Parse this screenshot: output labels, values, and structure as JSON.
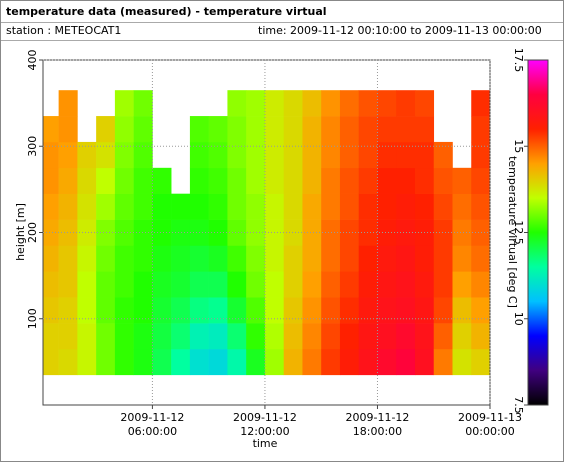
{
  "header": {
    "title": "temperature data (measured) - temperature virtual",
    "station": "station : METEOCAT1",
    "time_range": "time: 2009-11-12 00:10:00 to 2009-11-13 00:00:00"
  },
  "chart_data": {
    "type": "heatmap",
    "x_label": "time",
    "y_label": "height [m]",
    "colorbar_label": "temperature virtual [deg C]",
    "xlim": [
      "2009-11-12 00:10:00",
      "2009-11-13 00:00:00"
    ],
    "xticks": [
      {
        "value": "2009-11-12 06:00:00",
        "label": [
          "2009-11-12",
          "06:00:00"
        ]
      },
      {
        "value": "2009-11-12 12:00:00",
        "label": [
          "2009-11-12",
          "12:00:00"
        ]
      },
      {
        "value": "2009-11-12 18:00:00",
        "label": [
          "2009-11-12",
          "18:00:00"
        ]
      },
      {
        "value": "2009-11-13 00:00:00",
        "label": [
          "2009-11-13",
          "00:00:00"
        ]
      }
    ],
    "ylim": [
      0,
      400
    ],
    "yticks": [
      100,
      200,
      300,
      400
    ],
    "grid": true,
    "zlim": [
      7.5,
      17.5
    ],
    "zticks": [
      7.5,
      10,
      12.5,
      15,
      17.5
    ],
    "colormap": [
      "#000000",
      "#400080",
      "#0000ff",
      "#00c0ff",
      "#00ffa0",
      "#20ff00",
      "#c0ff00",
      "#ffa000",
      "#ff2000",
      "#ff0040",
      "#ff00ff"
    ],
    "x_bins": [
      "2009-11-12 00:10:00",
      "2009-11-12 01:00:00",
      "2009-11-12 02:00:00",
      "2009-11-12 03:00:00",
      "2009-11-12 04:00:00",
      "2009-11-12 05:00:00",
      "2009-11-12 06:00:00",
      "2009-11-12 07:00:00",
      "2009-11-12 08:00:00",
      "2009-11-12 09:00:00",
      "2009-11-12 10:00:00",
      "2009-11-12 11:00:00",
      "2009-11-12 12:00:00",
      "2009-11-12 13:00:00",
      "2009-11-12 14:00:00",
      "2009-11-12 15:00:00",
      "2009-11-12 16:00:00",
      "2009-11-12 17:00:00",
      "2009-11-12 18:00:00",
      "2009-11-12 19:00:00",
      "2009-11-12 20:00:00",
      "2009-11-12 21:00:00",
      "2009-11-12 22:00:00",
      "2009-11-12 23:00:00",
      "2009-11-13 00:00:00"
    ],
    "y_bins": [
      35,
      65,
      95,
      125,
      155,
      185,
      215,
      245,
      275,
      305,
      335,
      365
    ],
    "values": [
      [
        14.0,
        14.0,
        14.1,
        14.2,
        14.3,
        14.4,
        14.5,
        14.6,
        14.6,
        14.5,
        null
      ],
      [
        13.9,
        14.0,
        14.0,
        14.1,
        14.1,
        14.2,
        14.3,
        14.4,
        14.5,
        14.6,
        14.6
      ],
      [
        13.6,
        13.6,
        13.5,
        13.5,
        13.6,
        13.7,
        13.8,
        13.9,
        14.0,
        null,
        null
      ],
      [
        13.0,
        13.0,
        12.9,
        12.9,
        13.0,
        13.1,
        13.3,
        13.5,
        13.8,
        14.0,
        null
      ],
      [
        12.6,
        12.6,
        12.6,
        12.7,
        12.7,
        12.8,
        12.9,
        13.0,
        13.1,
        13.2,
        13.3
      ],
      [
        12.4,
        12.4,
        12.5,
        12.5,
        12.6,
        12.6,
        12.7,
        12.7,
        12.8,
        12.9,
        13.0
      ],
      [
        12.0,
        12.1,
        12.2,
        12.3,
        12.4,
        12.5,
        12.5,
        12.6,
        null,
        null,
        null
      ],
      [
        11.5,
        11.8,
        12.0,
        12.2,
        12.3,
        12.4,
        12.5,
        null,
        null,
        null,
        null
      ],
      [
        11.0,
        11.3,
        11.7,
        12.0,
        12.2,
        12.4,
        12.5,
        12.6,
        12.7,
        12.8,
        null
      ],
      [
        10.9,
        11.2,
        11.6,
        12.0,
        12.3,
        12.5,
        12.6,
        12.7,
        12.8,
        12.9,
        null
      ],
      [
        11.4,
        11.8,
        12.2,
        12.5,
        12.7,
        12.9,
        13.0,
        13.0,
        13.1,
        13.1,
        13.2
      ],
      [
        12.3,
        12.6,
        12.8,
        13.0,
        13.1,
        13.2,
        13.2,
        13.3,
        13.3,
        13.3,
        13.3
      ],
      [
        13.3,
        13.4,
        13.5,
        13.5,
        13.6,
        13.6,
        13.6,
        13.7,
        13.7,
        13.7,
        13.7
      ],
      [
        14.3,
        14.2,
        14.1,
        14.0,
        14.0,
        13.9,
        13.9,
        13.9,
        13.9,
        13.9,
        13.9
      ],
      [
        14.8,
        14.7,
        14.6,
        14.5,
        14.4,
        14.4,
        14.4,
        14.3,
        14.3,
        14.3,
        14.2
      ],
      [
        15.3,
        15.2,
        15.1,
        15.0,
        14.9,
        14.9,
        14.8,
        14.8,
        14.7,
        14.7,
        14.6
      ],
      [
        15.6,
        15.5,
        15.4,
        15.3,
        15.2,
        15.2,
        15.1,
        15.1,
        15.0,
        15.0,
        14.9
      ],
      [
        15.9,
        15.8,
        15.7,
        15.6,
        15.5,
        15.4,
        15.4,
        15.3,
        15.2,
        15.2,
        15.1
      ],
      [
        16.2,
        16.0,
        15.9,
        15.8,
        15.7,
        15.6,
        15.5,
        15.5,
        15.4,
        15.3,
        15.2
      ],
      [
        16.4,
        16.2,
        16.0,
        15.9,
        15.8,
        15.7,
        15.6,
        15.5,
        15.4,
        15.3,
        15.3
      ],
      [
        16.0,
        15.9,
        15.8,
        15.7,
        15.6,
        15.6,
        15.5,
        15.4,
        15.4,
        15.3,
        15.2
      ],
      [
        14.8,
        15.0,
        15.2,
        15.3,
        15.3,
        15.3,
        15.2,
        15.1,
        15.0,
        null,
        null
      ],
      [
        13.8,
        14.0,
        14.2,
        14.5,
        14.7,
        14.8,
        14.9,
        15.0,
        null,
        null,
        null
      ],
      [
        14.0,
        14.3,
        14.5,
        14.7,
        14.9,
        15.0,
        15.1,
        15.2,
        15.3,
        15.3,
        15.4
      ]
    ]
  }
}
